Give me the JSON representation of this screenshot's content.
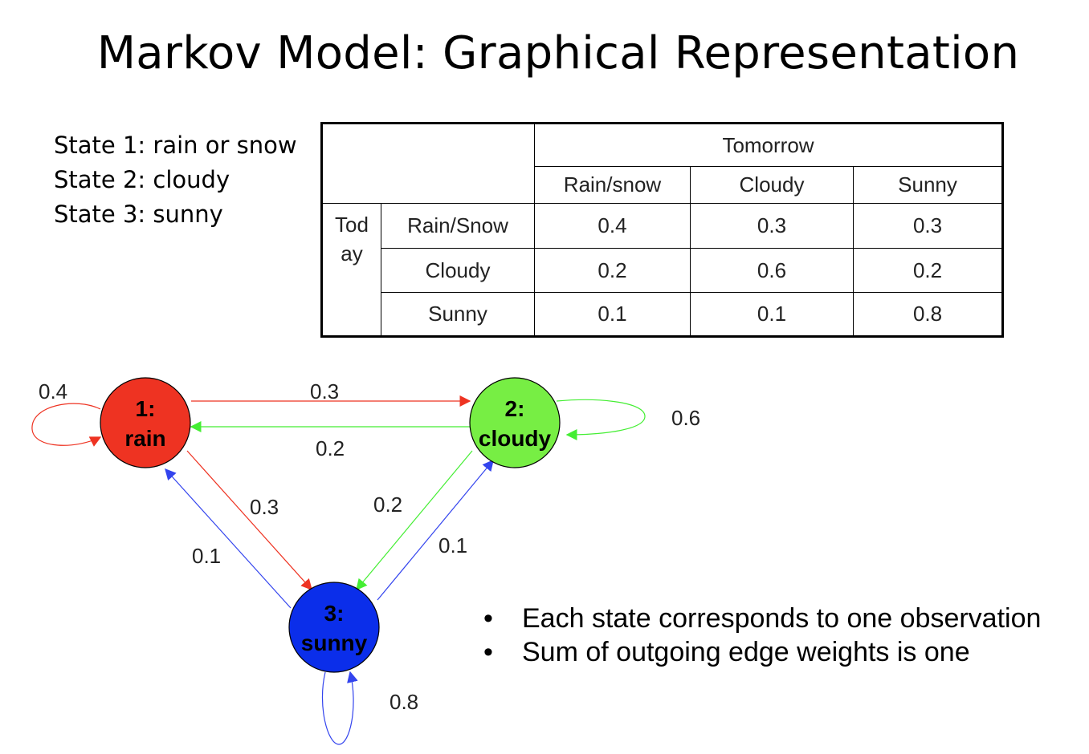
{
  "title": "Markov Model: Graphical Representation",
  "states": [
    "State 1: rain or snow",
    "State 2: cloudy",
    "State 3: sunny"
  ],
  "table": {
    "tomorrow_header": "Tomorrow",
    "today_header_line1": "Tod",
    "today_header_line2": "ay",
    "column_headers": [
      "Rain/snow",
      "Cloudy",
      "Sunny"
    ],
    "rows": [
      {
        "label": "Rain/Snow",
        "values": [
          "0.4",
          "0.3",
          "0.3"
        ]
      },
      {
        "label": "Cloudy",
        "values": [
          "0.2",
          "0.6",
          "0.2"
        ]
      },
      {
        "label": "Sunny",
        "values": [
          "0.1",
          "0.1",
          "0.8"
        ]
      }
    ]
  },
  "diagram": {
    "nodes": [
      {
        "id": "rain",
        "line1": "1:",
        "line2": "rain",
        "color": "#ee3322"
      },
      {
        "id": "cloudy",
        "line1": "2:",
        "line2": "cloudy",
        "color": "#77ee44"
      },
      {
        "id": "sunny",
        "line1": "3:",
        "line2": "sunny",
        "color": "#0b2eea"
      }
    ],
    "edge_colors": {
      "from_rain": "#ee3322",
      "from_cloudy": "#44ee33",
      "from_sunny": "#3344ee"
    },
    "edges": [
      {
        "from": "rain",
        "to": "rain",
        "weight": "0.4"
      },
      {
        "from": "rain",
        "to": "cloudy",
        "weight": "0.3"
      },
      {
        "from": "cloudy",
        "to": "rain",
        "weight": "0.2"
      },
      {
        "from": "cloudy",
        "to": "cloudy",
        "weight": "0.6"
      },
      {
        "from": "rain",
        "to": "sunny",
        "weight": "0.3"
      },
      {
        "from": "cloudy",
        "to": "sunny",
        "weight": "0.2"
      },
      {
        "from": "sunny",
        "to": "rain",
        "weight": "0.1"
      },
      {
        "from": "sunny",
        "to": "cloudy",
        "weight": "0.1"
      },
      {
        "from": "sunny",
        "to": "sunny",
        "weight": "0.8"
      }
    ]
  },
  "bullets": [
    "Each state corresponds to one observation",
    "Sum of outgoing edge weights is one"
  ],
  "bullet_glyph": "•"
}
